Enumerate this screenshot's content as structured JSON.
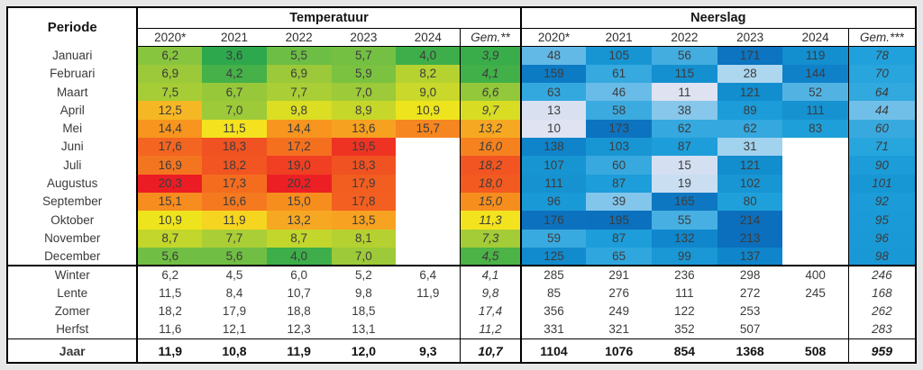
{
  "header": {
    "period_label": "Periode",
    "temp_label": "Temperatuur",
    "precip_label": "Neerslag",
    "temp_years": [
      "2020*",
      "2021",
      "2022",
      "2023",
      "2024",
      "Gem.**"
    ],
    "precip_years": [
      "2020*",
      "2021",
      "2022",
      "2023",
      "2024",
      "Gem.***"
    ]
  },
  "chart_data": {
    "type": "heatmap-table",
    "title": "Temperatuur en Neerslag per periode 2020-2024 met gemiddelden",
    "columns_temp": [
      "2020*",
      "2021",
      "2022",
      "2023",
      "2024",
      "Gem.**"
    ],
    "columns_precip": [
      "2020*",
      "2021",
      "2022",
      "2023",
      "2024",
      "Gem.***"
    ],
    "months": [
      {
        "label": "Januari",
        "temp": [
          "6,2",
          "3,6",
          "5,5",
          "5,7",
          "4,0",
          "3,9"
        ],
        "precip": [
          "48",
          "105",
          "56",
          "171",
          "119",
          "78"
        ]
      },
      {
        "label": "Februari",
        "temp": [
          "6,9",
          "4,2",
          "6,9",
          "5,9",
          "8,2",
          "4,1"
        ],
        "precip": [
          "159",
          "61",
          "115",
          "28",
          "144",
          "70"
        ]
      },
      {
        "label": "Maart",
        "temp": [
          "7,5",
          "6,7",
          "7,7",
          "7,0",
          "9,0",
          "6,6"
        ],
        "precip": [
          "63",
          "46",
          "11",
          "121",
          "52",
          "64"
        ]
      },
      {
        "label": "April",
        "temp": [
          "12,5",
          "7,0",
          "9,8",
          "8,9",
          "10,9",
          "9,7"
        ],
        "precip": [
          "13",
          "58",
          "38",
          "89",
          "111",
          "44"
        ]
      },
      {
        "label": "Mei",
        "temp": [
          "14,4",
          "11,5",
          "14,4",
          "13,6",
          "15,7",
          "13,2"
        ],
        "precip": [
          "10",
          "173",
          "62",
          "62",
          "83",
          "60"
        ]
      },
      {
        "label": "Juni",
        "temp": [
          "17,6",
          "18,3",
          "17,2",
          "19,5",
          "",
          "16,0"
        ],
        "precip": [
          "138",
          "103",
          "87",
          "31",
          "",
          "71"
        ]
      },
      {
        "label": "Juli",
        "temp": [
          "16,9",
          "18,2",
          "19,0",
          "18,3",
          "",
          "18,2"
        ],
        "precip": [
          "107",
          "60",
          "15",
          "121",
          "",
          "90"
        ]
      },
      {
        "label": "Augustus",
        "temp": [
          "20,3",
          "17,3",
          "20,2",
          "17,9",
          "",
          "18,0"
        ],
        "precip": [
          "111",
          "87",
          "19",
          "102",
          "",
          "101"
        ]
      },
      {
        "label": "September",
        "temp": [
          "15,1",
          "16,6",
          "15,0",
          "17,8",
          "",
          "15,0"
        ],
        "precip": [
          "96",
          "39",
          "165",
          "80",
          "",
          "92"
        ]
      },
      {
        "label": "Oktober",
        "temp": [
          "10,9",
          "11,9",
          "13,2",
          "13,5",
          "",
          "11,3"
        ],
        "precip": [
          "176",
          "195",
          "55",
          "214",
          "",
          "95"
        ]
      },
      {
        "label": "November",
        "temp": [
          "8,7",
          "7,7",
          "8,7",
          "8,1",
          "",
          "7,3"
        ],
        "precip": [
          "59",
          "87",
          "132",
          "213",
          "",
          "96"
        ]
      },
      {
        "label": "December",
        "temp": [
          "5,6",
          "5,6",
          "4,0",
          "7,0",
          "",
          "4,5"
        ],
        "precip": [
          "125",
          "65",
          "99",
          "137",
          "",
          "98"
        ]
      }
    ],
    "seasons": [
      {
        "label": "Winter",
        "temp": [
          "6,2",
          "4,5",
          "6,0",
          "5,2",
          "6,4",
          "4,1"
        ],
        "precip": [
          "285",
          "291",
          "236",
          "298",
          "400",
          "246"
        ]
      },
      {
        "label": "Lente",
        "temp": [
          "11,5",
          "8,4",
          "10,7",
          "9,8",
          "11,9",
          "9,8"
        ],
        "precip": [
          "85",
          "276",
          "111",
          "272",
          "245",
          "168"
        ]
      },
      {
        "label": "Zomer",
        "temp": [
          "18,2",
          "17,9",
          "18,8",
          "18,5",
          "",
          "17,4"
        ],
        "precip": [
          "356",
          "249",
          "122",
          "253",
          "",
          "262"
        ]
      },
      {
        "label": "Herfst",
        "temp": [
          "11,6",
          "12,1",
          "12,3",
          "13,1",
          "",
          "11,2"
        ],
        "precip": [
          "331",
          "321",
          "352",
          "507",
          "",
          "283"
        ]
      }
    ],
    "jaar": {
      "label": "Jaar",
      "temp": [
        "11,9",
        "10,8",
        "11,9",
        "12,0",
        "9,3",
        "10,7"
      ],
      "precip": [
        "1104",
        "1076",
        "854",
        "1368",
        "508",
        "959"
      ]
    }
  },
  "colors": {
    "page_background": "#e7e7e7",
    "table_border": "#000000",
    "text": "#3c3c3c",
    "temp_scale": [
      [
        3.6,
        "#2EA84C"
      ],
      [
        4.2,
        "#45B148"
      ],
      [
        5.0,
        "#57B746"
      ],
      [
        5.6,
        "#70BF44"
      ],
      [
        6.3,
        "#8CC63D"
      ],
      [
        7.0,
        "#9DCA38"
      ],
      [
        7.8,
        "#ACCF34"
      ],
      [
        8.6,
        "#C0D52D"
      ],
      [
        9.4,
        "#D2DB26"
      ],
      [
        10.2,
        "#E3E021"
      ],
      [
        11.0,
        "#F0E41D"
      ],
      [
        11.6,
        "#F6E11E"
      ],
      [
        12.0,
        "#F6D121"
      ],
      [
        12.6,
        "#F5B224"
      ],
      [
        13.4,
        "#F7A421"
      ],
      [
        14.2,
        "#F7971F"
      ],
      [
        15.2,
        "#F68C1E"
      ],
      [
        16.2,
        "#F57F1F"
      ],
      [
        17.2,
        "#F4701F"
      ],
      [
        18.0,
        "#F25A20"
      ],
      [
        18.8,
        "#F04422"
      ],
      [
        19.6,
        "#EE3023"
      ],
      [
        20.3,
        "#EC1C24"
      ]
    ],
    "precip_scale": [
      [
        0,
        "#E6E6F4"
      ],
      [
        10,
        "#E0E3F1"
      ],
      [
        20,
        "#C8DDF2"
      ],
      [
        28,
        "#ADD6EF"
      ],
      [
        38,
        "#86C7EB"
      ],
      [
        48,
        "#62B9E6"
      ],
      [
        58,
        "#3BAADF"
      ],
      [
        68,
        "#2AA6DE"
      ],
      [
        80,
        "#1FA0DA"
      ],
      [
        95,
        "#1A9AD7"
      ],
      [
        110,
        "#1692D1"
      ],
      [
        125,
        "#118BCD"
      ],
      [
        140,
        "#0F83CA"
      ],
      [
        160,
        "#0D7AC4"
      ],
      [
        175,
        "#0C72BF"
      ],
      [
        214,
        "#0B6FBD"
      ]
    ]
  }
}
